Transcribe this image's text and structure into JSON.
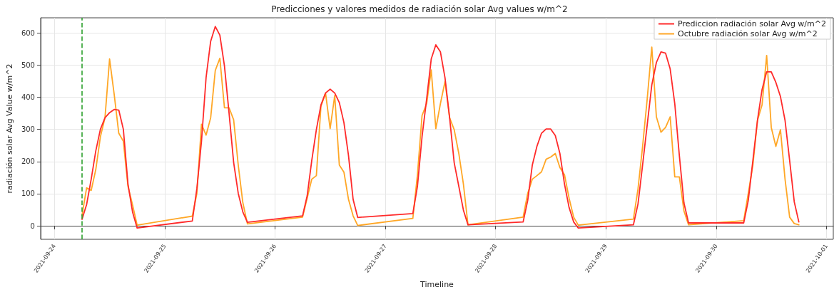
{
  "chart_data": {
    "type": "line",
    "title": "Predicciones y valores medidos de radiación solar Avg values w/m^2",
    "xlabel": "Timeline",
    "ylabel": "radiación solar Avg Value w/m^2",
    "x": [
      "2021-09-24T06:00",
      "2021-09-24T07:00",
      "2021-09-24T08:00",
      "2021-09-24T09:00",
      "2021-09-24T10:00",
      "2021-09-24T11:00",
      "2021-09-24T12:00",
      "2021-09-24T13:00",
      "2021-09-24T14:00",
      "2021-09-24T15:00",
      "2021-09-24T16:00",
      "2021-09-24T17:00",
      "2021-09-24T18:00",
      "2021-09-25T06:00",
      "2021-09-25T07:00",
      "2021-09-25T08:00",
      "2021-09-25T09:00",
      "2021-09-25T10:00",
      "2021-09-25T11:00",
      "2021-09-25T12:00",
      "2021-09-25T13:00",
      "2021-09-25T14:00",
      "2021-09-25T15:00",
      "2021-09-25T16:00",
      "2021-09-25T17:00",
      "2021-09-25T18:00",
      "2021-09-26T06:00",
      "2021-09-26T07:00",
      "2021-09-26T08:00",
      "2021-09-26T09:00",
      "2021-09-26T10:00",
      "2021-09-26T11:00",
      "2021-09-26T12:00",
      "2021-09-26T13:00",
      "2021-09-26T14:00",
      "2021-09-26T15:00",
      "2021-09-26T16:00",
      "2021-09-26T17:00",
      "2021-09-26T18:00",
      "2021-09-27T06:00",
      "2021-09-27T07:00",
      "2021-09-27T08:00",
      "2021-09-27T09:00",
      "2021-09-27T10:00",
      "2021-09-27T11:00",
      "2021-09-27T12:00",
      "2021-09-27T13:00",
      "2021-09-27T14:00",
      "2021-09-27T15:00",
      "2021-09-27T16:00",
      "2021-09-27T17:00",
      "2021-09-27T18:00",
      "2021-09-28T06:00",
      "2021-09-28T07:00",
      "2021-09-28T08:00",
      "2021-09-28T09:00",
      "2021-09-28T10:00",
      "2021-09-28T11:00",
      "2021-09-28T12:00",
      "2021-09-28T13:00",
      "2021-09-28T14:00",
      "2021-09-28T15:00",
      "2021-09-28T16:00",
      "2021-09-28T17:00",
      "2021-09-28T18:00",
      "2021-09-29T06:00",
      "2021-09-29T07:00",
      "2021-09-29T08:00",
      "2021-09-29T09:00",
      "2021-09-29T10:00",
      "2021-09-29T11:00",
      "2021-09-29T12:00",
      "2021-09-29T13:00",
      "2021-09-29T14:00",
      "2021-09-29T15:00",
      "2021-09-29T16:00",
      "2021-09-29T17:00",
      "2021-09-29T18:00",
      "2021-09-30T06:00",
      "2021-09-30T07:00",
      "2021-09-30T08:00",
      "2021-09-30T09:00",
      "2021-09-30T10:00",
      "2021-09-30T11:00",
      "2021-09-30T12:00",
      "2021-09-30T13:00",
      "2021-09-30T14:00",
      "2021-09-30T15:00",
      "2021-09-30T16:00",
      "2021-09-30T17:00",
      "2021-09-30T18:00"
    ],
    "series": [
      {
        "name": "Prediccion radiación solar Avg w/m^2",
        "color": "#ff2a2a",
        "values": [
          20,
          66,
          145,
          233,
          300,
          336,
          352,
          362,
          360,
          300,
          130,
          43,
          -7,
          15,
          116,
          263,
          461,
          574,
          620,
          593,
          497,
          351,
          197,
          101,
          43,
          11,
          31,
          93,
          203,
          299,
          376,
          413,
          425,
          413,
          383,
          321,
          218,
          82,
          26,
          38,
          123,
          277,
          394,
          519,
          563,
          541,
          460,
          336,
          196,
          123,
          49,
          3,
          12,
          79,
          189,
          247,
          288,
          301,
          301,
          281,
          225,
          130,
          57,
          12,
          -7,
          3,
          68,
          189,
          314,
          438,
          508,
          541,
          537,
          488,
          380,
          218,
          71,
          9,
          9,
          79,
          203,
          328,
          424,
          479,
          479,
          446,
          402,
          328,
          203,
          75,
          12
        ]
      },
      {
        "name": "Octubre radiación solar Avg w/m^2",
        "color": "#ffa726",
        "values": [
          32,
          118,
          110,
          175,
          277,
          336,
          519,
          409,
          288,
          263,
          123,
          65,
          2,
          30,
          101,
          316,
          282,
          336,
          483,
          521,
          367,
          367,
          330,
          189,
          72,
          6,
          27,
          86,
          145,
          156,
          372,
          413,
          302,
          405,
          189,
          167,
          82,
          31,
          1,
          23,
          159,
          343,
          380,
          485,
          302,
          380,
          449,
          336,
          299,
          225,
          130,
          3,
          27,
          101,
          145,
          156,
          168,
          207,
          214,
          225,
          181,
          159,
          86,
          27,
          2,
          21,
          115,
          247,
          394,
          556,
          339,
          291,
          306,
          339,
          152,
          152,
          46,
          3,
          16,
          101,
          189,
          328,
          376,
          530,
          306,
          247,
          299,
          145,
          27,
          7,
          3
        ]
      }
    ],
    "xlim": [
      "2021-09-23T21:00",
      "2021-10-01T01:30"
    ],
    "xticks": [
      "2021-09-24",
      "2021-09-25",
      "2021-09-26",
      "2021-09-27",
      "2021-09-28",
      "2021-09-29",
      "2021-09-30",
      "2021-10-01"
    ],
    "ylim": [
      -42,
      647
    ],
    "yticks": [
      0,
      100,
      200,
      300,
      400,
      500,
      600
    ],
    "ref_lines": [
      {
        "axis": "x",
        "value": "2021-09-24T06:00",
        "color": "#2ca02c",
        "line_style": "dashed"
      }
    ],
    "grid": true,
    "legend": "top right",
    "marker": "none",
    "line_style": "solid"
  }
}
